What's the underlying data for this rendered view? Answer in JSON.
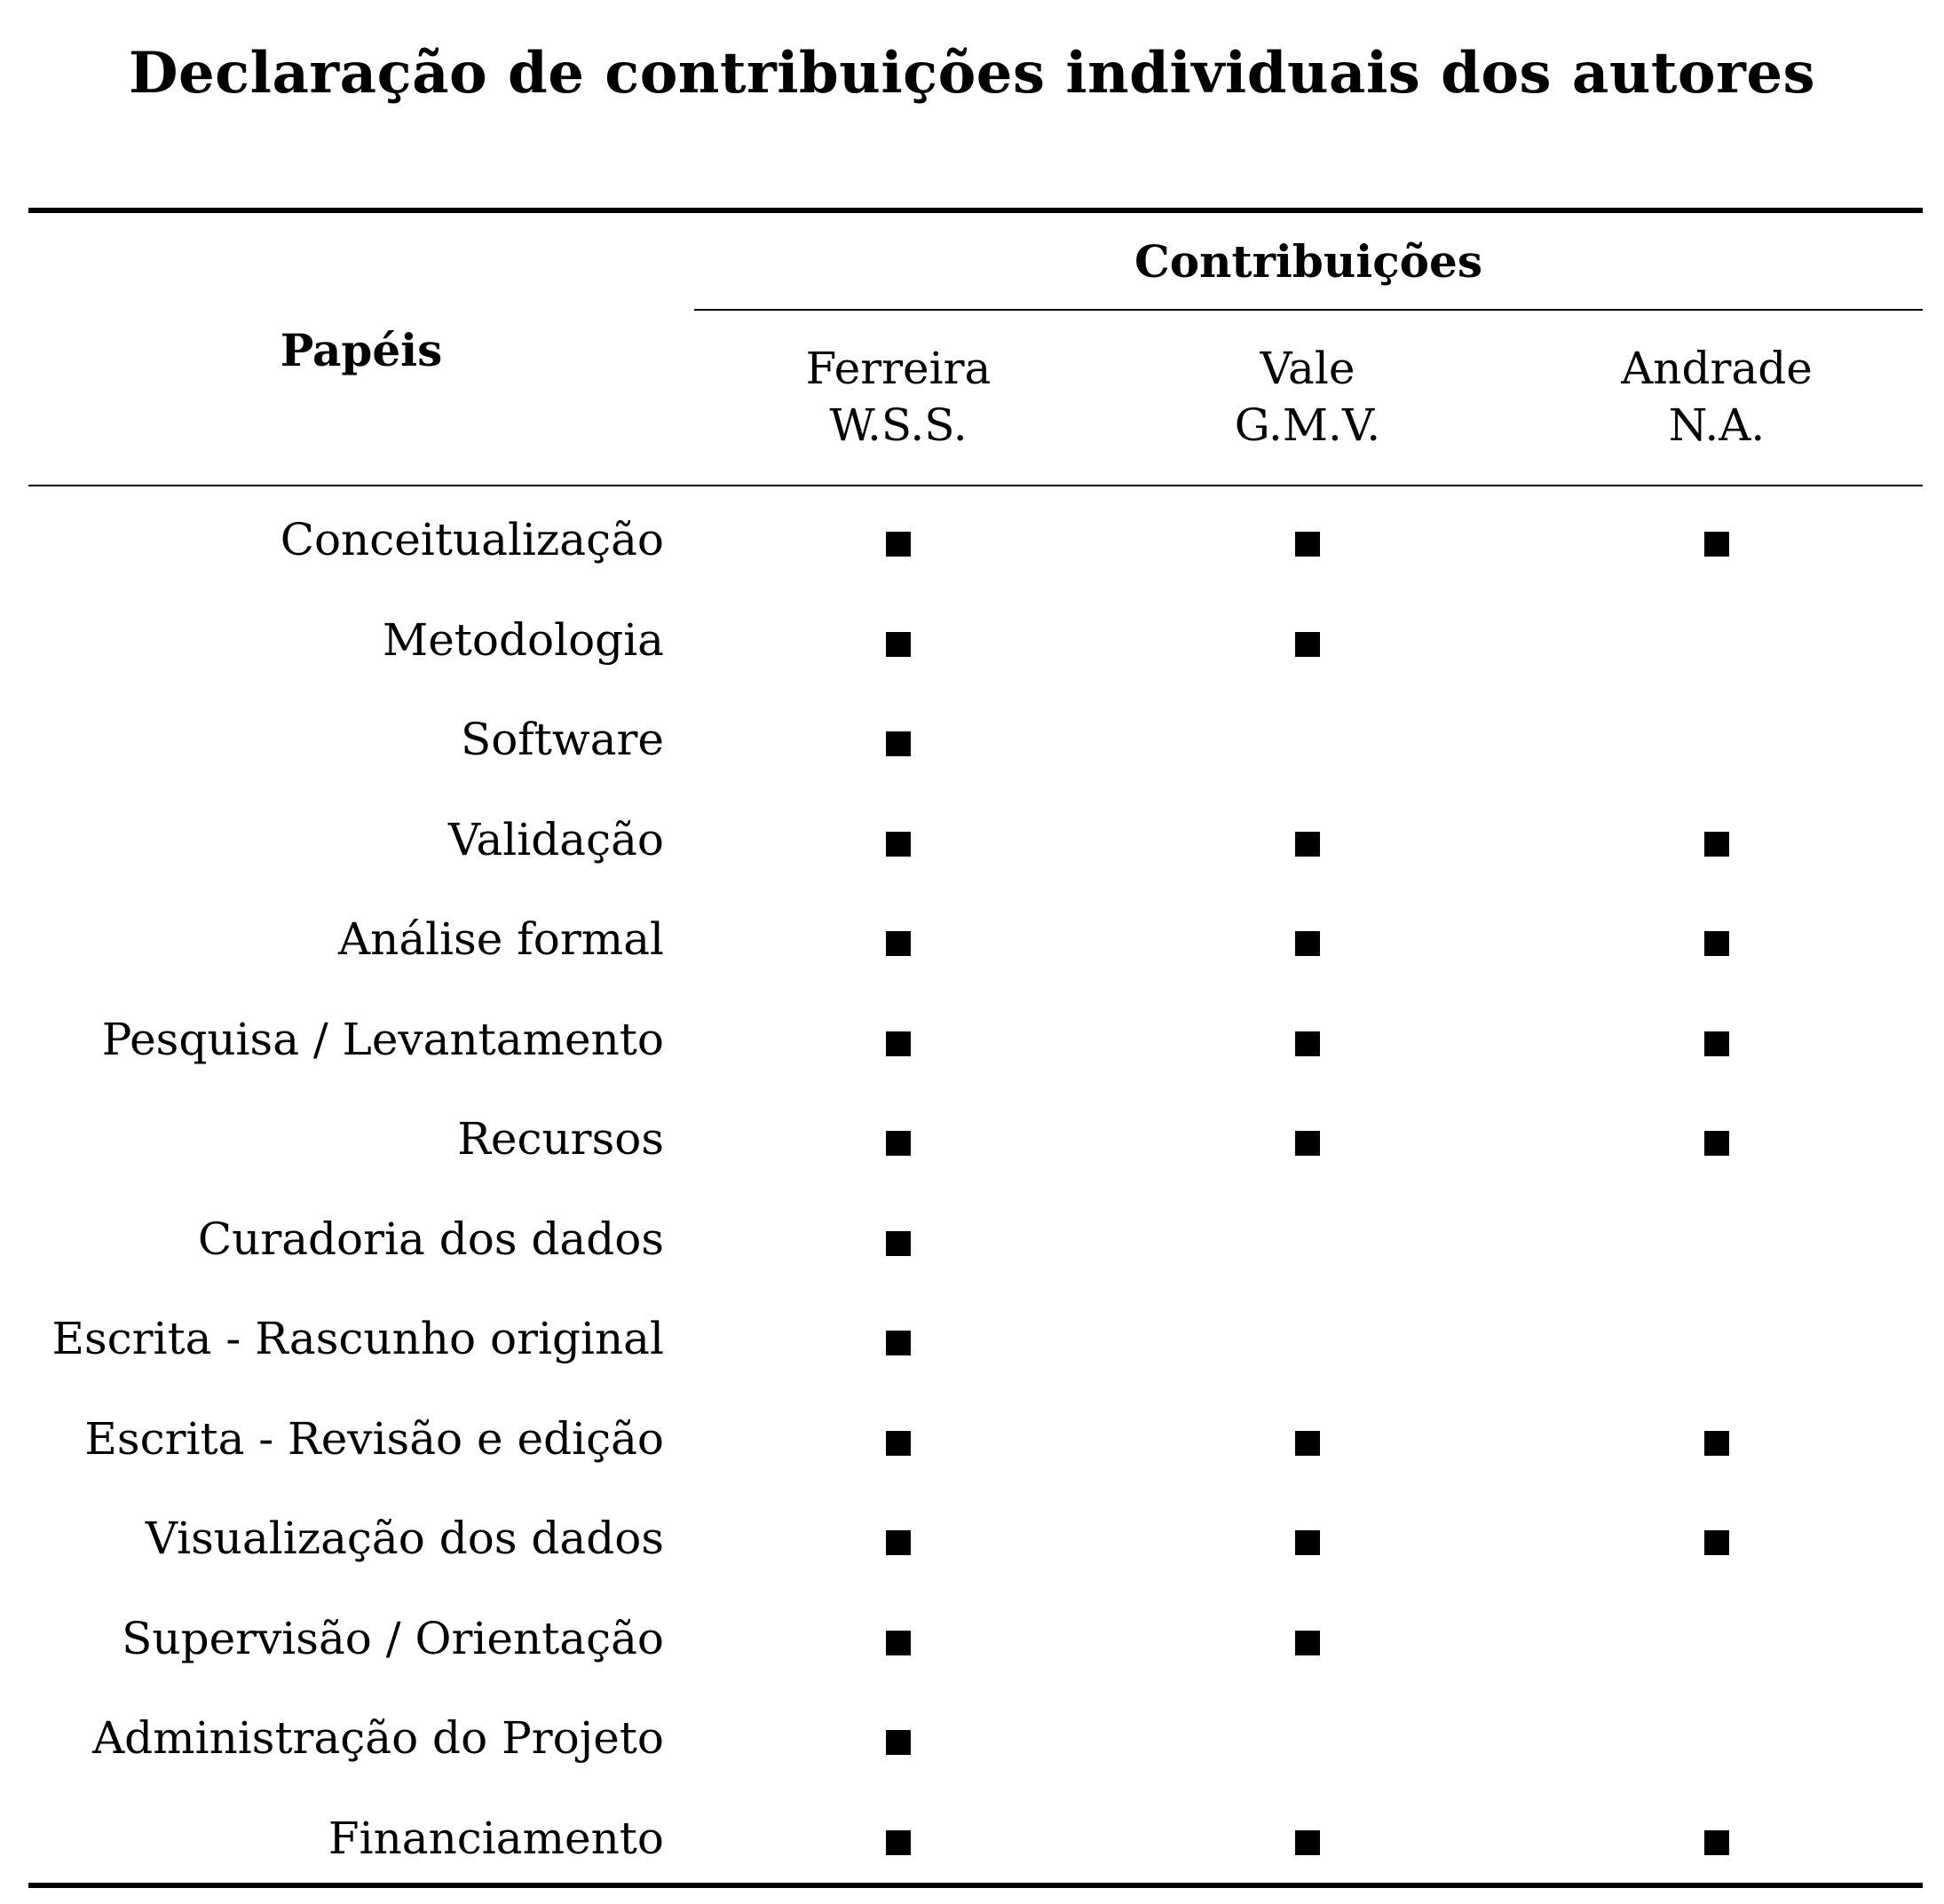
{
  "title": "Declaração de contribuições individuais dos autores",
  "header": {
    "roles_label": "Papéis",
    "contributions_label": "Contribuições",
    "authors": [
      {
        "surname": "Ferreira",
        "initials": "W.S.S."
      },
      {
        "surname": "Vale",
        "initials": "G.M.V."
      },
      {
        "surname": "Andrade",
        "initials": "N.A."
      }
    ]
  },
  "mark_symbol": "■",
  "rows": [
    {
      "role": "Conceitualização",
      "contributions": [
        true,
        true,
        true
      ]
    },
    {
      "role": "Metodologia",
      "contributions": [
        true,
        true,
        false
      ]
    },
    {
      "role": "Software",
      "contributions": [
        true,
        false,
        false
      ]
    },
    {
      "role": "Validação",
      "contributions": [
        true,
        true,
        true
      ]
    },
    {
      "role": "Análise formal",
      "contributions": [
        true,
        true,
        true
      ]
    },
    {
      "role": "Pesquisa / Levantamento",
      "contributions": [
        true,
        true,
        true
      ]
    },
    {
      "role": "Recursos",
      "contributions": [
        true,
        true,
        true
      ]
    },
    {
      "role": "Curadoria dos dados",
      "contributions": [
        true,
        false,
        false
      ]
    },
    {
      "role": "Escrita - Rascunho original",
      "contributions": [
        true,
        false,
        false
      ]
    },
    {
      "role": "Escrita - Revisão e edição",
      "contributions": [
        true,
        true,
        true
      ]
    },
    {
      "role": "Visualização dos dados",
      "contributions": [
        true,
        true,
        true
      ]
    },
    {
      "role": "Supervisão / Orientação",
      "contributions": [
        true,
        true,
        false
      ]
    },
    {
      "role": "Administração do Projeto",
      "contributions": [
        true,
        false,
        false
      ]
    },
    {
      "role": "Financiamento",
      "contributions": [
        true,
        true,
        true
      ]
    }
  ]
}
